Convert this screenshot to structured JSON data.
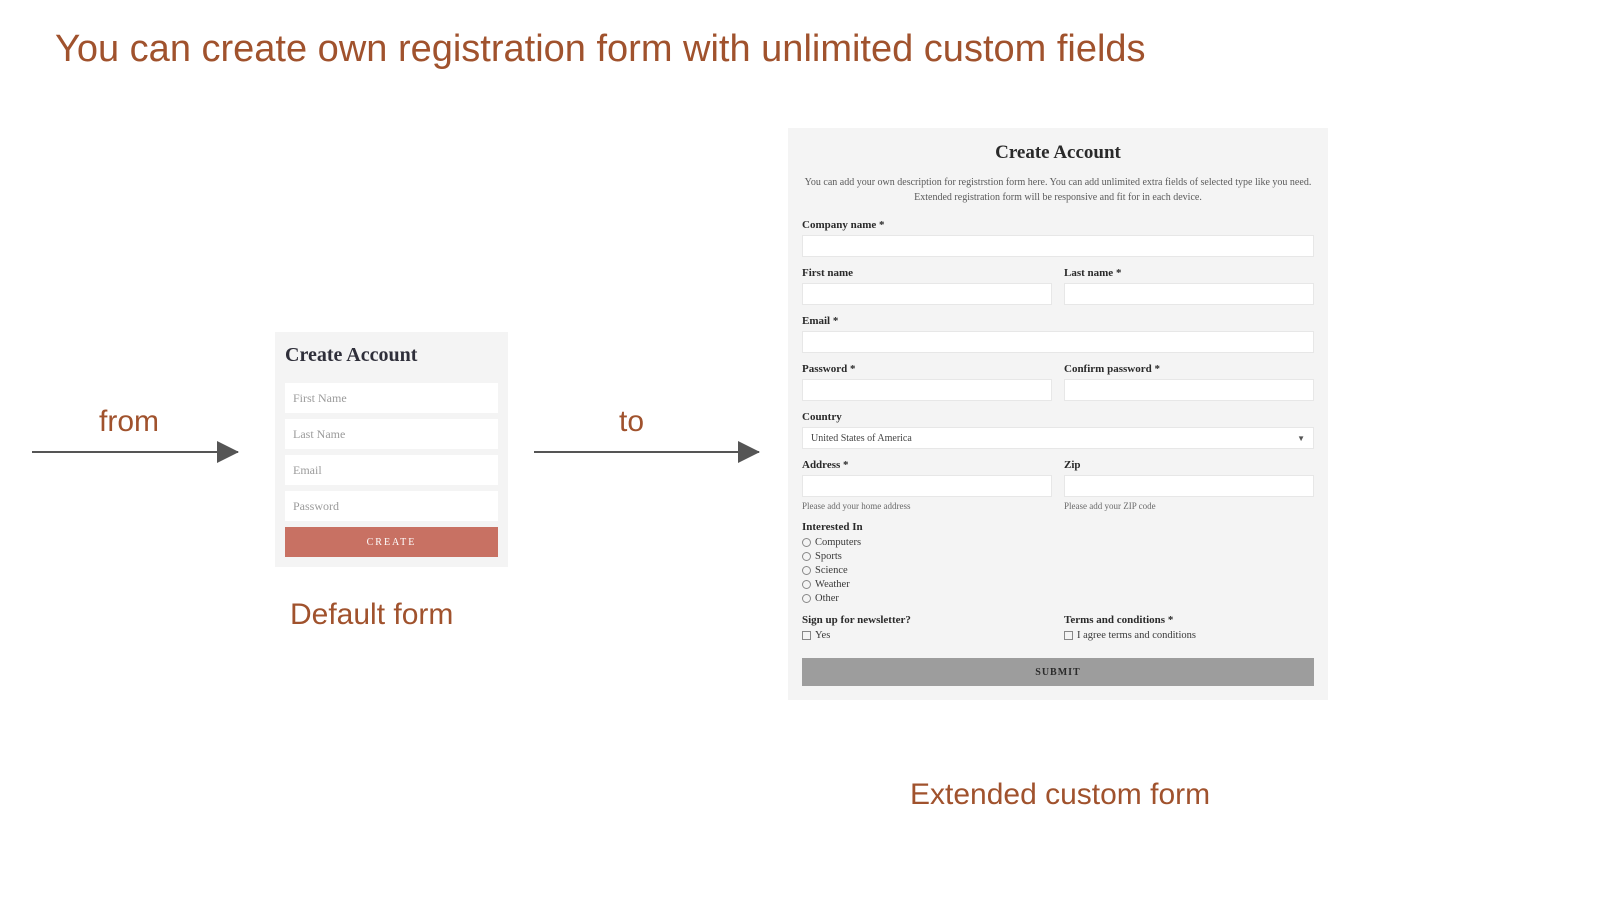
{
  "colors": {
    "headline": "#a0522d",
    "label": "#a0522d",
    "caption": "#a0522d",
    "arrow": "#555555",
    "card_bg": "#f4f4f4",
    "input_bg": "#ffffff",
    "create_btn_bg": "#c87163",
    "create_btn_fg": "#ffffff",
    "submit_btn_bg": "#9d9d9d",
    "submit_btn_fg": "#2b2b2b",
    "form_title": "#2f2f3a",
    "placeholder": "#9b9b9b"
  },
  "headline": "You can create own registration form with unlimited custom fields",
  "labels": {
    "from": "from",
    "to": "to"
  },
  "captions": {
    "default": "Default form",
    "extended": "Extended custom form"
  },
  "default_form": {
    "title": "Create Account",
    "fields": {
      "first_name": "First Name",
      "last_name": "Last Name",
      "email": "Email",
      "password": "Password"
    },
    "button": "CREATE"
  },
  "ext_form": {
    "title": "Create Account",
    "description": "You can add your own description for registrstion form here. You can add unlimited extra fields of selected type like you need. Extended registration form will be responsive and fit for in each device.",
    "company_label": "Company name *",
    "first_name_label": "First name",
    "last_name_label": "Last name *",
    "email_label": "Email *",
    "password_label": "Password *",
    "confirm_password_label": "Confirm password *",
    "country_label": "Country",
    "country_value": "United States of America",
    "address_label": "Address *",
    "address_hint": "Please add your home address",
    "zip_label": "Zip",
    "zip_hint": "Please add your ZIP code",
    "interested_label": "Interested In",
    "interested_options": {
      "o0": "Computers",
      "o1": "Sports",
      "o2": "Science",
      "o3": "Weather",
      "o4": "Other"
    },
    "newsletter_label": "Sign up for newsletter?",
    "newsletter_option": "Yes",
    "terms_label": "Terms and conditions *",
    "terms_option": "I agree terms and conditions",
    "submit": "SUBMIT"
  }
}
